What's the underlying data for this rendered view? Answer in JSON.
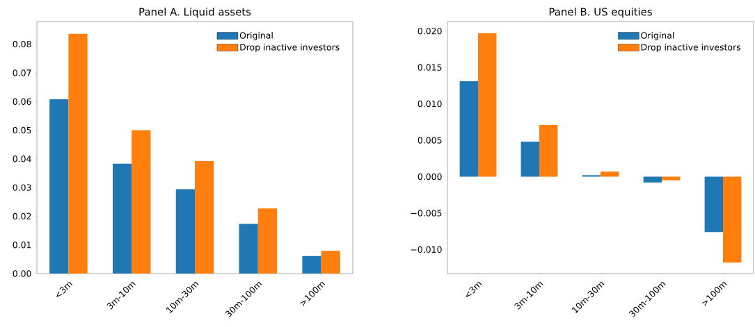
{
  "chart_data": [
    {
      "type": "bar",
      "title": "Panel A. Liquid assets",
      "categories": [
        "<3m",
        "3m-10m",
        "10m-30m",
        "30m-100m",
        ">100m"
      ],
      "series": [
        {
          "name": "Original",
          "color": "#1f77b4",
          "values": [
            0.0608,
            0.0383,
            0.0294,
            0.0173,
            0.0061
          ]
        },
        {
          "name": "Drop inactive investors",
          "color": "#ff7f0e",
          "values": [
            0.0836,
            0.05,
            0.0392,
            0.0227,
            0.0079
          ]
        }
      ],
      "ylim": [
        0,
        0.0879
      ],
      "yticks": [
        {
          "value": 0,
          "label": "0.00"
        },
        {
          "value": 0.01,
          "label": "0.01"
        },
        {
          "value": 0.02,
          "label": "0.02"
        },
        {
          "value": 0.03,
          "label": "0.03"
        },
        {
          "value": 0.04,
          "label": "0.04"
        },
        {
          "value": 0.05,
          "label": "0.05"
        },
        {
          "value": 0.06,
          "label": "0.06"
        },
        {
          "value": 0.07,
          "label": "0.07"
        },
        {
          "value": 0.08,
          "label": "0.08"
        }
      ],
      "legend": "top right"
    },
    {
      "type": "bar",
      "title": "Panel B. US equities",
      "categories": [
        "<3m",
        "3m-10m",
        "10m-30m",
        "30m-100m",
        ">100m"
      ],
      "series": [
        {
          "name": "Original",
          "color": "#1f77b4",
          "values": [
            0.0131,
            0.0048,
            0.0002,
            -0.0008,
            -0.0076
          ]
        },
        {
          "name": "Drop inactive investors",
          "color": "#ff7f0e",
          "values": [
            0.0197,
            0.0071,
            0.0007,
            -0.0005,
            -0.0118
          ]
        }
      ],
      "ylim": [
        -0.0133,
        0.0213
      ],
      "yticks": [
        {
          "value": -0.01,
          "label": "−0.010"
        },
        {
          "value": -0.005,
          "label": "−0.005"
        },
        {
          "value": 0,
          "label": "0.000"
        },
        {
          "value": 0.005,
          "label": "0.005"
        },
        {
          "value": 0.01,
          "label": "0.010"
        },
        {
          "value": 0.015,
          "label": "0.015"
        },
        {
          "value": 0.02,
          "label": "0.020"
        }
      ],
      "legend": "top right"
    }
  ]
}
